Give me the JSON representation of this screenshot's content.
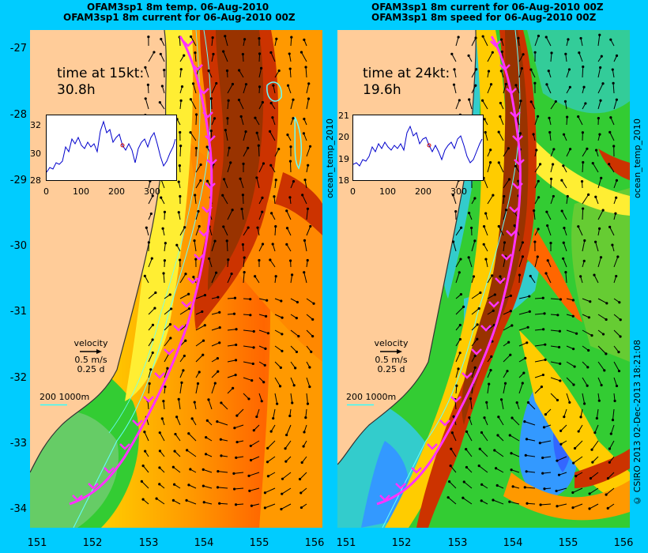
{
  "left": {
    "title1": "OFAM3sp1 8m temp. 06-Aug-2010",
    "title2": "OFAM3sp1 8m current for 06-Aug-2010 00Z",
    "time_label": "time at 15kt:",
    "time_value": "30.8h",
    "side_label": "ocean_temp_2010",
    "inset": {
      "yticks": [
        "32",
        "30",
        "28"
      ],
      "xticks": [
        "0",
        "100",
        "200",
        "300"
      ]
    },
    "velocity_label": "velocity",
    "velocity_speed": "0.5 m/s",
    "velocity_time": "0.25 d",
    "depth_label": "200  1000m"
  },
  "right": {
    "title1": "OFAM3sp1 8m current for 06-Aug-2010 00Z",
    "title2": "OFAM3sp1 8m speed for 06-Aug-2010 00Z",
    "time_label": "time at 24kt:",
    "time_value": "19.6h",
    "side_label": "ocean_temp_2010",
    "inset": {
      "yticks": [
        "21",
        "20",
        "19",
        "18"
      ],
      "xticks": [
        "0",
        "100",
        "200",
        "300"
      ]
    },
    "velocity_label": "velocity",
    "velocity_speed": "0.5 m/s",
    "velocity_time": "0.25 d",
    "depth_label": "200  1000m"
  },
  "y_ticks": [
    "-27",
    "-28",
    "-29",
    "-30",
    "-31",
    "-32",
    "-33",
    "-34"
  ],
  "x_ticks": [
    "151",
    "152",
    "153",
    "154",
    "155",
    "156"
  ],
  "credit": "© CSIRO 2013   02-Dec-2013 18:21:08",
  "colors": {
    "background": "#00ccff",
    "land": "#ffcc99",
    "route": "#ff33ff",
    "contour": "#33ffff"
  }
}
